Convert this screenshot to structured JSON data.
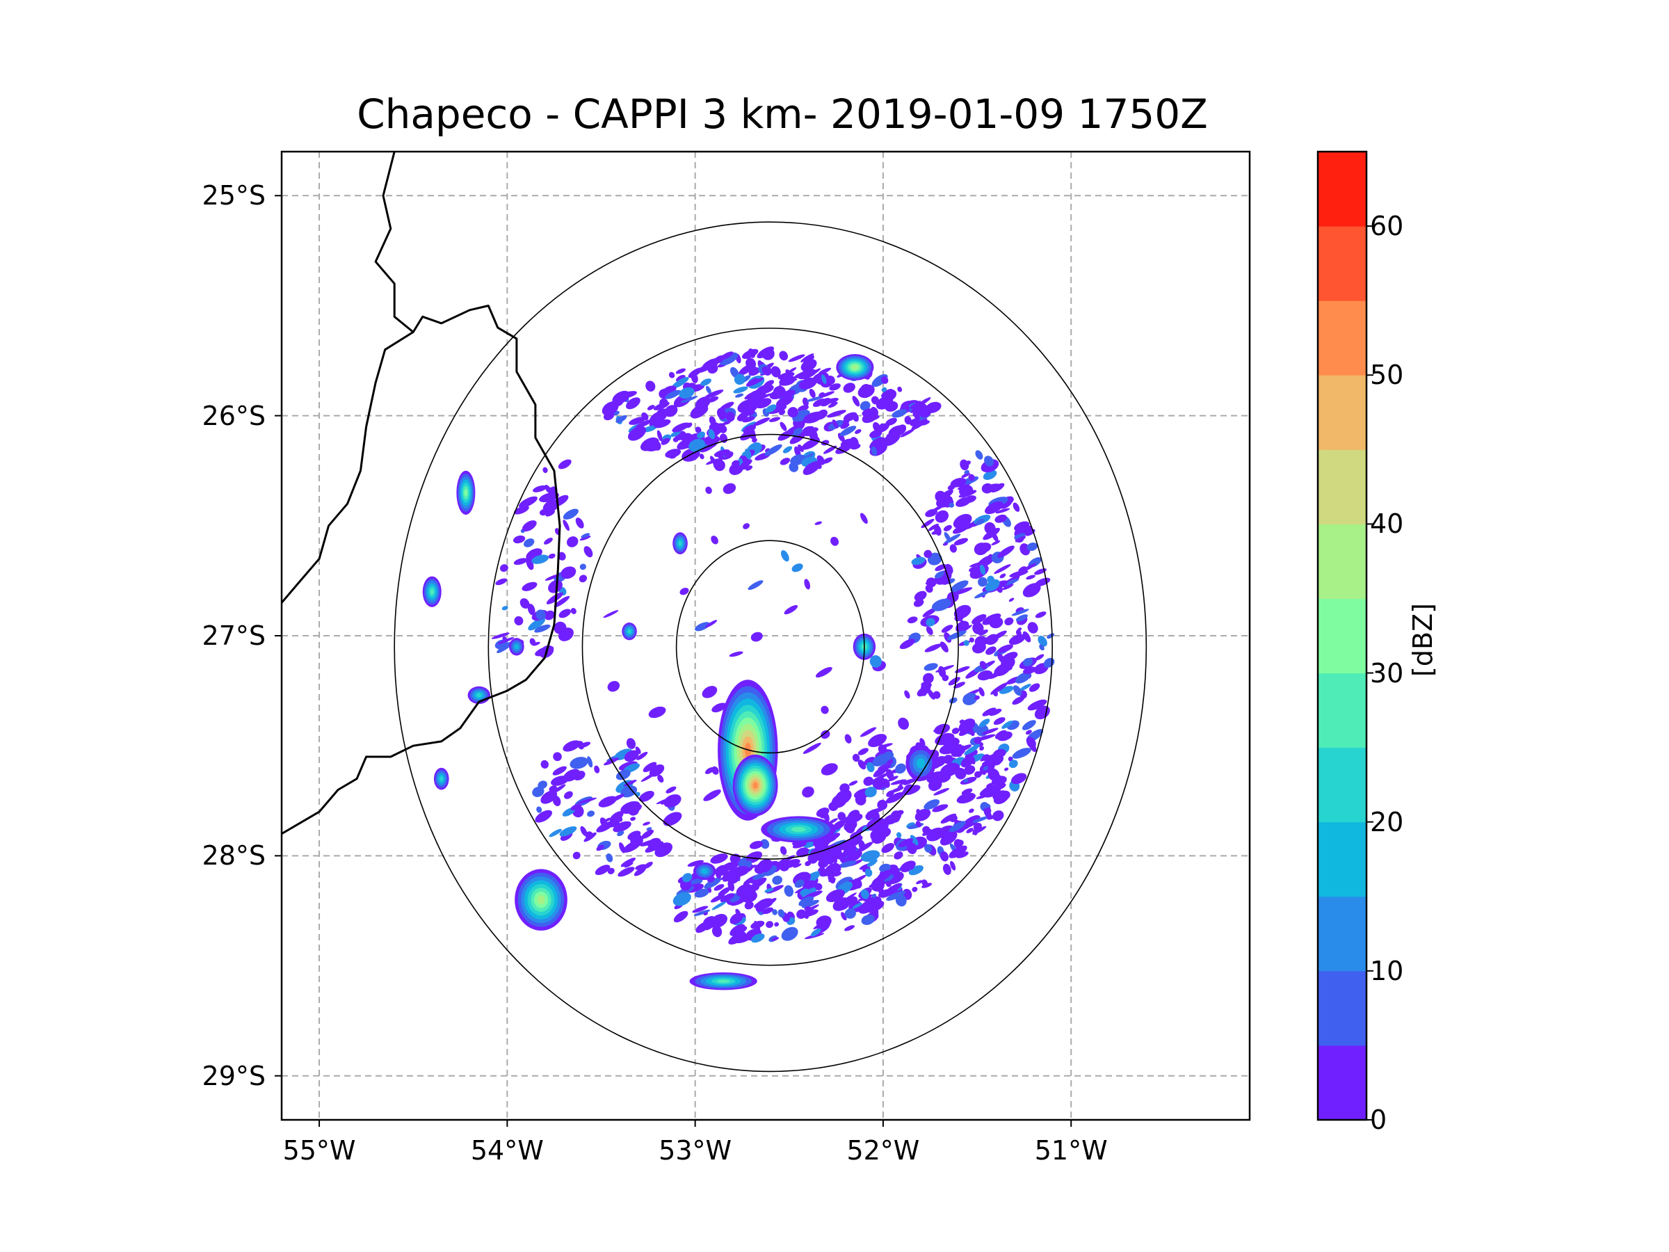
{
  "chart_data": {
    "type": "heatmap",
    "title": "Chapeco - CAPPI 3 km- 2019-01-09 1750Z",
    "radar_name": "Chapeco",
    "product": "CAPPI 3 km",
    "datetime": "2019-01-09 1750Z",
    "extent": {
      "lon": [
        -55.2,
        -50.05
      ],
      "lat": [
        -29.2,
        -24.8
      ]
    },
    "radar_site": {
      "lon": -52.6,
      "lat": -27.05
    },
    "range_rings_deg": [
      0.5,
      1.0,
      1.5,
      2.0
    ],
    "lat_ticks": [
      {
        "value": -25,
        "label": "25°S"
      },
      {
        "value": -26,
        "label": "26°S"
      },
      {
        "value": -27,
        "label": "27°S"
      },
      {
        "value": -28,
        "label": "28°S"
      },
      {
        "value": -29,
        "label": "29°S"
      }
    ],
    "lon_ticks": [
      {
        "value": -55,
        "label": "55°W"
      },
      {
        "value": -54,
        "label": "54°W"
      },
      {
        "value": -53,
        "label": "53°W"
      },
      {
        "value": -52,
        "label": "52°W"
      },
      {
        "value": -51,
        "label": "51°W"
      }
    ],
    "grid": true,
    "colorbar": {
      "label": "[dBZ]",
      "range": [
        0,
        65
      ],
      "step": 5,
      "ticks": [
        0,
        10,
        20,
        30,
        40,
        50,
        60
      ],
      "colors": [
        "#7020ff",
        "#4060f0",
        "#2a8cea",
        "#10b8e0",
        "#28d4d0",
        "#50ecb8",
        "#80fca0",
        "#a8f088",
        "#d0d880",
        "#f0b868",
        "#ff8c4c",
        "#ff5530",
        "#ff2010"
      ]
    },
    "echo_cells": [
      {
        "lon": -52.72,
        "lat": -27.52,
        "rlon": 0.16,
        "rlat": 0.32,
        "max_dbz": 52
      },
      {
        "lon": -52.68,
        "lat": -27.68,
        "rlon": 0.12,
        "rlat": 0.14,
        "max_dbz": 50
      },
      {
        "lon": -52.45,
        "lat": -27.88,
        "rlon": 0.2,
        "rlat": 0.06,
        "max_dbz": 25
      },
      {
        "lon": -53.82,
        "lat": -28.2,
        "rlon": 0.14,
        "rlat": 0.14,
        "max_dbz": 38
      },
      {
        "lon": -52.15,
        "lat": -25.78,
        "rlon": 0.1,
        "rlat": 0.06,
        "max_dbz": 35
      },
      {
        "lon": -54.22,
        "lat": -26.35,
        "rlon": 0.05,
        "rlat": 0.1,
        "max_dbz": 30
      },
      {
        "lon": -54.4,
        "lat": -26.8,
        "rlon": 0.05,
        "rlat": 0.07,
        "max_dbz": 25
      },
      {
        "lon": -52.1,
        "lat": -27.05,
        "rlon": 0.06,
        "rlat": 0.06,
        "max_dbz": 25
      },
      {
        "lon": -53.35,
        "lat": -26.98,
        "rlon": 0.04,
        "rlat": 0.04,
        "max_dbz": 20
      },
      {
        "lon": -53.08,
        "lat": -26.58,
        "rlon": 0.04,
        "rlat": 0.05,
        "max_dbz": 20
      },
      {
        "lon": -52.85,
        "lat": -28.57,
        "rlon": 0.18,
        "rlat": 0.04,
        "max_dbz": 25
      },
      {
        "lon": -54.15,
        "lat": -27.27,
        "rlon": 0.06,
        "rlat": 0.04,
        "max_dbz": 20
      },
      {
        "lon": -54.35,
        "lat": -27.65,
        "rlon": 0.04,
        "rlat": 0.05,
        "max_dbz": 20
      },
      {
        "lon": -52.95,
        "lat": -28.07,
        "rlon": 0.06,
        "rlat": 0.04,
        "max_dbz": 15
      },
      {
        "lon": -51.8,
        "lat": -27.58,
        "rlon": 0.08,
        "rlat": 0.08,
        "max_dbz": 15
      },
      {
        "lon": -53.95,
        "lat": -27.05,
        "rlon": 0.04,
        "rlat": 0.04,
        "max_dbz": 15
      }
    ],
    "echo_regions": [
      {
        "name": "north-arc",
        "lon": -52.6,
        "lat": -25.9,
        "rlon": 0.9,
        "rlat": 0.35,
        "density": 0.55
      },
      {
        "name": "east-band",
        "lon": -51.3,
        "lat": -26.9,
        "rlon": 0.55,
        "rlat": 0.8,
        "density": 0.5
      },
      {
        "name": "southeast",
        "lon": -51.8,
        "lat": -27.9,
        "rlon": 0.55,
        "rlat": 0.45,
        "density": 0.35
      },
      {
        "name": "south-center",
        "lon": -52.5,
        "lat": -28.2,
        "rlon": 0.6,
        "rlat": 0.3,
        "density": 0.3
      },
      {
        "name": "west",
        "lon": -53.9,
        "lat": -26.6,
        "rlon": 0.35,
        "rlat": 0.5,
        "density": 0.12
      },
      {
        "name": "southwest",
        "lon": -53.5,
        "lat": -27.8,
        "rlon": 0.4,
        "rlat": 0.35,
        "density": 0.12
      },
      {
        "name": "inner",
        "lon": -52.6,
        "lat": -27.05,
        "rlon": 0.9,
        "rlat": 0.8,
        "density": 0.05
      }
    ],
    "borders": [
      [
        [
          -54.6,
          -24.8
        ],
        [
          -54.66,
          -25.0
        ],
        [
          -54.62,
          -25.15
        ],
        [
          -54.7,
          -25.3
        ],
        [
          -54.6,
          -25.4
        ],
        [
          -54.6,
          -25.55
        ],
        [
          -54.5,
          -25.62
        ],
        [
          -54.45,
          -25.55
        ],
        [
          -54.35,
          -25.58
        ],
        [
          -54.2,
          -25.52
        ],
        [
          -54.1,
          -25.5
        ],
        [
          -54.05,
          -25.6
        ],
        [
          -53.95,
          -25.65
        ],
        [
          -53.95,
          -25.8
        ],
        [
          -53.85,
          -25.95
        ],
        [
          -53.85,
          -26.1
        ],
        [
          -53.75,
          -26.25
        ],
        [
          -53.72,
          -26.5
        ],
        [
          -53.73,
          -26.7
        ],
        [
          -53.75,
          -26.95
        ],
        [
          -53.8,
          -27.1
        ],
        [
          -53.9,
          -27.2
        ],
        [
          -54.0,
          -27.25
        ],
        [
          -54.15,
          -27.3
        ],
        [
          -54.25,
          -27.42
        ],
        [
          -54.35,
          -27.48
        ],
        [
          -54.5,
          -27.5
        ],
        [
          -54.62,
          -27.55
        ],
        [
          -54.75,
          -27.55
        ],
        [
          -54.8,
          -27.65
        ],
        [
          -54.9,
          -27.7
        ],
        [
          -55.0,
          -27.8
        ],
        [
          -55.1,
          -27.85
        ],
        [
          -55.2,
          -27.9
        ]
      ],
      [
        [
          -55.2,
          -26.85
        ],
        [
          -55.1,
          -26.75
        ],
        [
          -55.0,
          -26.65
        ],
        [
          -54.95,
          -26.5
        ],
        [
          -54.85,
          -26.4
        ],
        [
          -54.78,
          -26.25
        ],
        [
          -54.75,
          -26.05
        ],
        [
          -54.7,
          -25.85
        ],
        [
          -54.65,
          -25.7
        ],
        [
          -54.5,
          -25.62
        ]
      ]
    ]
  }
}
